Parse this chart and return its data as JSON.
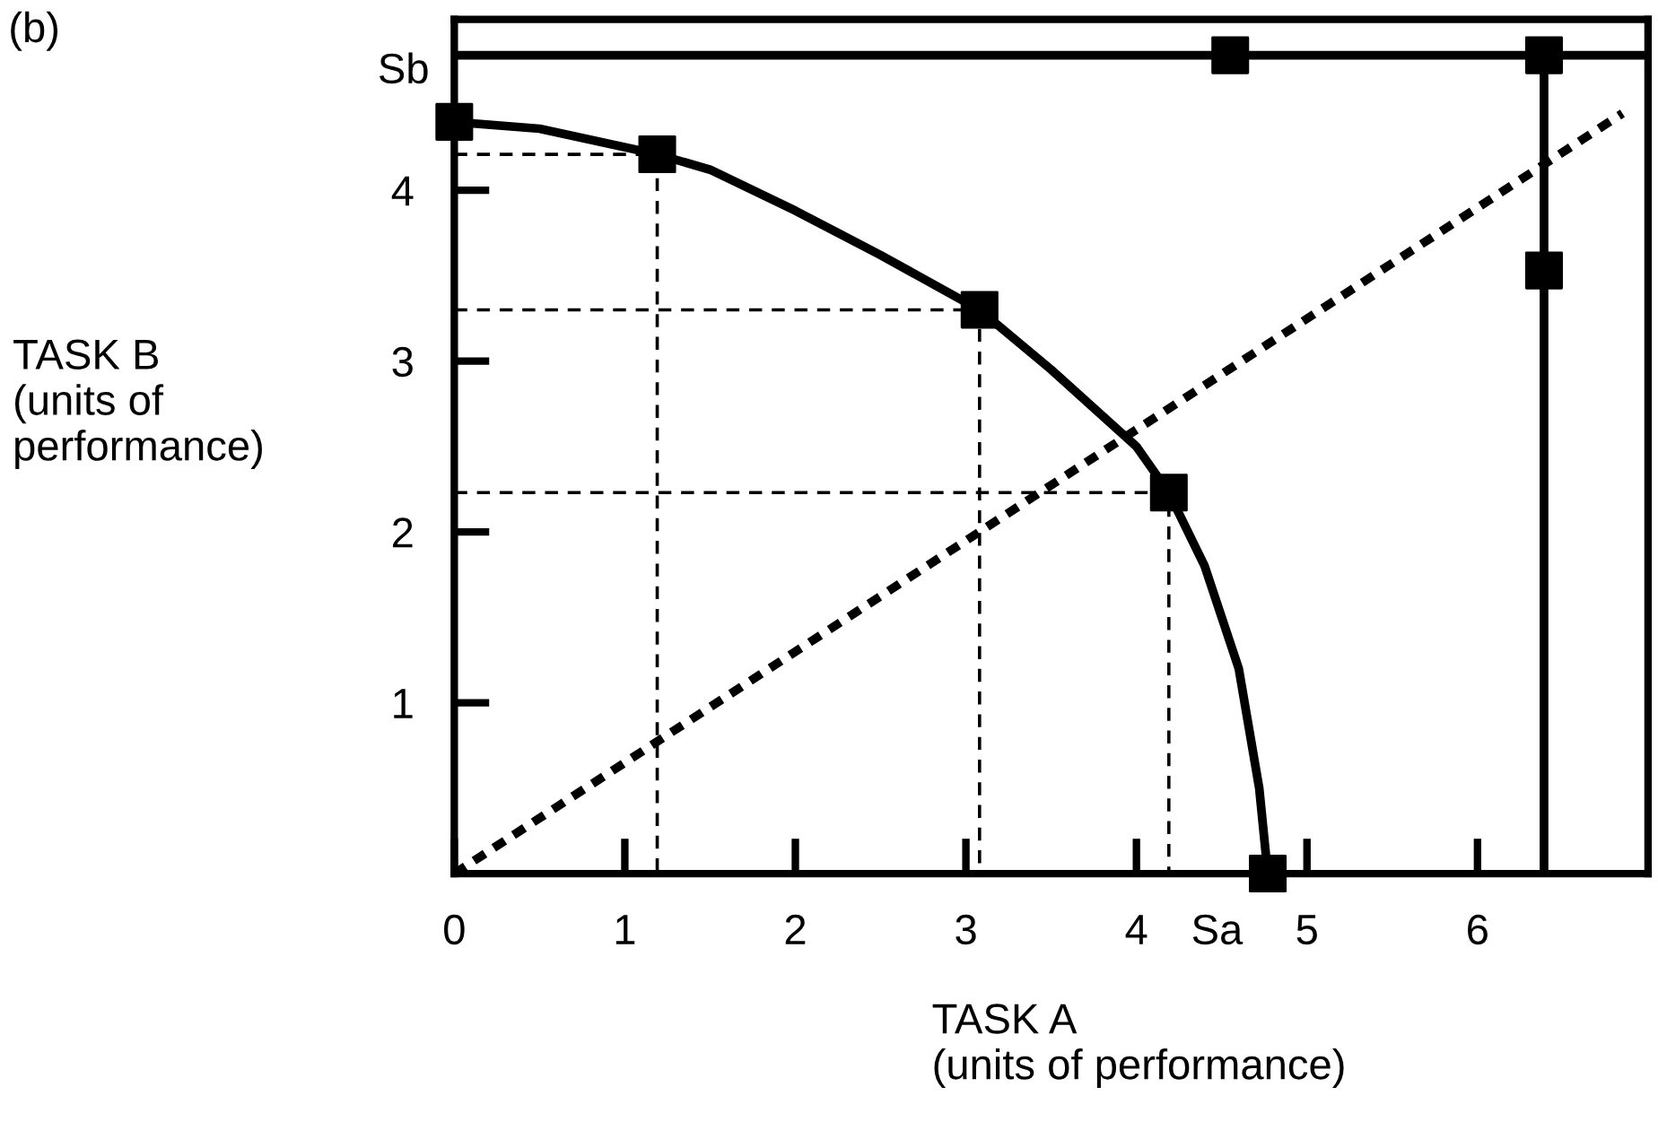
{
  "chart_data": {
    "type": "line",
    "xlabel": "TASK A\n(units of performance)",
    "ylabel": "TASK B\n(units of\nperformance)",
    "xlim": [
      0,
      7
    ],
    "ylim": [
      0,
      5
    ],
    "xticks": [
      0,
      1,
      2,
      3,
      4,
      5,
      6
    ],
    "yticks": [
      1,
      2,
      3,
      4
    ],
    "grid": false,
    "legend": false,
    "annotations": [
      "(b)",
      {
        "text": "Sb",
        "x": 0,
        "y": 4.4
      },
      {
        "text": "Sa",
        "x": 4.77,
        "y": 0
      }
    ],
    "series": [
      {
        "type": "line",
        "color": "#000000",
        "line_style": "solid",
        "marker": "none",
        "x": [
          0,
          0.5,
          1.19,
          1.5,
          2,
          2.5,
          3.08,
          3.5,
          4,
          4.19,
          4.4,
          4.6,
          4.72,
          4.77
        ],
        "values": [
          4.4,
          4.36,
          4.21,
          4.12,
          3.88,
          3.62,
          3.3,
          2.95,
          2.5,
          2.23,
          1.8,
          1.2,
          0.5,
          0
        ]
      },
      {
        "type": "scatter",
        "color": "#000000",
        "marker": "square",
        "x": [
          0,
          1.19,
          3.08,
          4.19,
          4.77
        ],
        "values": [
          4.4,
          4.21,
          3.3,
          2.23,
          0
        ]
      },
      {
        "type": "line",
        "color": "#000000",
        "line_style": "solid",
        "marker": "none",
        "x": [
          0,
          7
        ],
        "values": [
          4.79,
          4.79
        ]
      },
      {
        "type": "line",
        "color": "#000000",
        "line_style": "solid",
        "marker": "none",
        "x": [
          6.39,
          6.39
        ],
        "values": [
          4.79,
          0
        ]
      },
      {
        "type": "scatter",
        "color": "#000000",
        "marker": "square",
        "x": [
          4.55,
          6.39,
          6.39
        ],
        "values": [
          4.79,
          4.79,
          3.53
        ]
      },
      {
        "type": "line",
        "color": "#000000",
        "line_style": "dotted",
        "marker": "none",
        "x": [
          0,
          6.85
        ],
        "values": [
          0,
          4.45
        ]
      },
      {
        "type": "line",
        "color": "#000000",
        "line_style": "dashed",
        "marker": "none",
        "x": [
          0,
          1.19,
          1.19
        ],
        "values": [
          4.21,
          4.21,
          0
        ]
      },
      {
        "type": "line",
        "color": "#000000",
        "line_style": "dashed",
        "marker": "none",
        "x": [
          0,
          3.08,
          3.08
        ],
        "values": [
          3.3,
          3.3,
          0
        ]
      },
      {
        "type": "line",
        "color": "#000000",
        "line_style": "dashed",
        "marker": "none",
        "x": [
          0,
          4.19,
          4.19
        ],
        "values": [
          2.23,
          2.23,
          0
        ]
      }
    ]
  }
}
